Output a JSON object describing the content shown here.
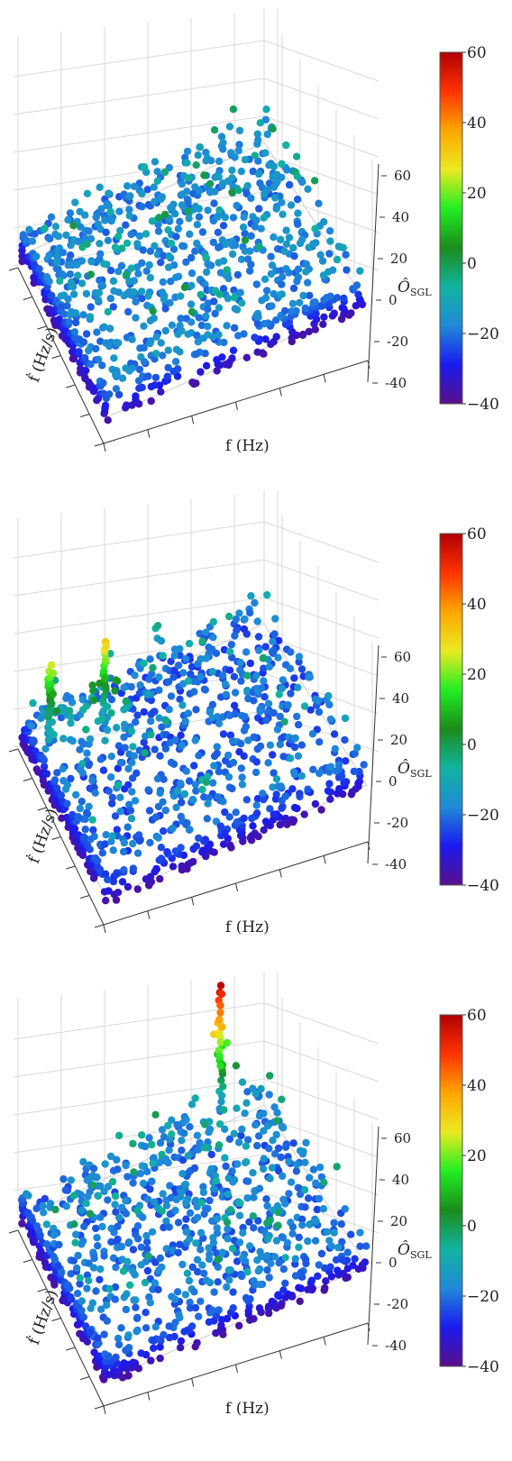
{
  "colorbar": {
    "ticks": [
      "60",
      "40",
      "20",
      "0",
      "−20",
      "−40"
    ],
    "tick_values": [
      60,
      40,
      20,
      0,
      -20,
      -40
    ],
    "range": [
      -40,
      60
    ],
    "colors": [
      "#5a0f8a",
      "#1a1aee",
      "#1f8ad8",
      "#12b3a0",
      "#1a8c1a",
      "#22ee22",
      "#eaea22",
      "#ffa500",
      "#ff3300",
      "#b00000"
    ]
  },
  "axes": {
    "x_label": "f (Hz)",
    "y_label": "ḟ (Hz/s)",
    "z_label": "Ô",
    "z_label_sub": "SGL",
    "z_ticks": [
      "60",
      "40",
      "20",
      "0",
      "-20",
      "-40"
    ],
    "z_tick_values": [
      60,
      40,
      20,
      0,
      -20,
      -40
    ],
    "z_range": [
      -40,
      60
    ]
  },
  "chart_data": [
    {
      "type": "scatter",
      "dimensions": "3d",
      "colorscale": "nipy_spectral",
      "zlim": [
        -40,
        60
      ],
      "zticks": [
        60,
        40,
        20,
        0,
        -20,
        -40
      ],
      "surface_level": -18,
      "peaks": []
    },
    {
      "type": "scatter",
      "dimensions": "3d",
      "colorscale": "nipy_spectral",
      "zlim": [
        -40,
        60
      ],
      "zticks": [
        60,
        40,
        20,
        0,
        -20,
        -40
      ],
      "surface_level": -22,
      "peaks": [
        {
          "f": 0.05,
          "fdot": 0.2,
          "z": 25
        },
        {
          "f": 0.25,
          "fdot": 0.25,
          "z": 32
        }
      ]
    },
    {
      "type": "scatter",
      "dimensions": "3d",
      "colorscale": "nipy_spectral",
      "zlim": [
        -40,
        60
      ],
      "zticks": [
        60,
        40,
        20,
        0,
        -20,
        -40
      ],
      "surface_level": -20,
      "peaks": [
        {
          "f": 0.8,
          "fdot": 0.05,
          "z": 58
        }
      ]
    }
  ]
}
